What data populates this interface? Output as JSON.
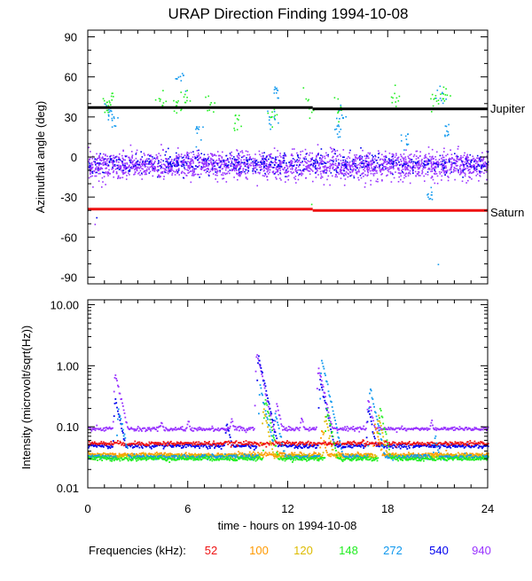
{
  "title": "URAP Direction Finding  1994-10-08",
  "legend": {
    "label": "Frequencies (kHz):",
    "items": [
      {
        "text": "52",
        "color": "#ee1111"
      },
      {
        "text": "100",
        "color": "#ff9900"
      },
      {
        "text": "120",
        "color": "#ddbb00"
      },
      {
        "text": "148",
        "color": "#22ee22"
      },
      {
        "text": "272",
        "color": "#1199ee"
      },
      {
        "text": "540",
        "color": "#0000ee"
      },
      {
        "text": "940",
        "color": "#9933ff"
      }
    ]
  },
  "chart_data": [
    {
      "type": "scatter",
      "name": "azimuth-panel",
      "title": "URAP Direction Finding  1994-10-08",
      "xlabel": "",
      "ylabel": "Azimuthal angle (deg)",
      "xlim": [
        0,
        24
      ],
      "ylim": [
        -95,
        95
      ],
      "yticks": [
        90,
        60,
        30,
        0,
        -30,
        -60,
        -90
      ],
      "ytick_labels": [
        "90",
        "60",
        "30",
        "0",
        "-30",
        "-60",
        "-90"
      ],
      "reference_lines": [
        {
          "name": "Jupiter",
          "color": "#000000",
          "segments": [
            {
              "x": [
                0,
                13.5
              ],
              "y": 37
            },
            {
              "x": [
                13.5,
                24
              ],
              "y": 36
            }
          ]
        },
        {
          "name": "Saturn",
          "color": "#ee1111",
          "segments": [
            {
              "x": [
                0,
                13.5
              ],
              "y": -39
            },
            {
              "x": [
                13.5,
                24
              ],
              "y": -40
            }
          ]
        }
      ],
      "series": [
        {
          "name": "940 kHz band",
          "color": "#9933ff",
          "center": -6,
          "spread": 5,
          "range": [
            -22,
            12
          ]
        },
        {
          "name": "540 kHz band",
          "color": "#0000ee",
          "center": -4,
          "spread": 4,
          "range": [
            -15,
            8
          ]
        },
        {
          "name": "148 kHz scatter",
          "color": "#22ee22",
          "clusters": [
            [
              1.0,
              40
            ],
            [
              1.4,
              42
            ],
            [
              4.4,
              42
            ],
            [
              5.3,
              38
            ],
            [
              5.8,
              45
            ],
            [
              7.3,
              40
            ],
            [
              8.9,
              25
            ],
            [
              11.0,
              32
            ],
            [
              13.2,
              38
            ],
            [
              15.0,
              37
            ],
            [
              18.5,
              45
            ],
            [
              20.8,
              40
            ],
            [
              21.3,
              48
            ]
          ]
        },
        {
          "name": "272 kHz scatter",
          "color": "#1199ee",
          "clusters": [
            [
              1.2,
              35
            ],
            [
              1.5,
              28
            ],
            [
              5.5,
              60
            ],
            [
              6.5,
              20
            ],
            [
              10.9,
              30
            ],
            [
              11.2,
              48
            ],
            [
              15.2,
              33
            ],
            [
              15.0,
              20
            ],
            [
              19.0,
              15
            ],
            [
              21.2,
              45
            ],
            [
              21.5,
              20
            ],
            [
              20.5,
              -30
            ]
          ]
        }
      ]
    },
    {
      "type": "scatter",
      "name": "intensity-panel",
      "xlabel": "time - hours on 1994-10-08",
      "ylabel": "Intensity (microvolt/sqrt(Hz))",
      "yscale": "log",
      "xlim": [
        0,
        24
      ],
      "ylim": [
        0.01,
        12
      ],
      "xticks": [
        0,
        6,
        12,
        18,
        24
      ],
      "xtick_labels": [
        "0",
        "6",
        "12",
        "18",
        "24"
      ],
      "yticks": [
        10,
        1,
        0.1,
        0.01
      ],
      "ytick_labels": [
        "10.00",
        "1.00",
        "0.10",
        "0.01"
      ],
      "series": [
        {
          "name": "52",
          "color": "#ee1111",
          "baseline": 0.055,
          "bursts": [
            [
              13.2,
              0.06
            ],
            [
              16.5,
              0.065
            ]
          ]
        },
        {
          "name": "100",
          "color": "#ff9900",
          "baseline": 0.036,
          "bursts": [
            [
              14.0,
              0.09
            ],
            [
              17.2,
              0.12
            ]
          ]
        },
        {
          "name": "120",
          "color": "#ddbb00",
          "baseline": 0.034,
          "bursts": [
            [
              10.5,
              0.2
            ],
            [
              14.2,
              0.15
            ],
            [
              17.4,
              0.16
            ]
          ]
        },
        {
          "name": "148",
          "color": "#22ee22",
          "baseline": 0.031,
          "bursts": [
            [
              10.6,
              0.3
            ],
            [
              14.3,
              0.2
            ],
            [
              17.5,
              0.2
            ]
          ]
        },
        {
          "name": "272",
          "color": "#1199ee",
          "baseline": 0.033,
          "bursts": [
            [
              1.8,
              0.2
            ],
            [
              10.3,
              0.5
            ],
            [
              11.2,
              0.18
            ],
            [
              14.0,
              1.3
            ],
            [
              16.9,
              0.45
            ],
            [
              20.8,
              0.07
            ]
          ]
        },
        {
          "name": "540",
          "color": "#0000ee",
          "baseline": 0.05,
          "bursts": [
            [
              1.6,
              0.3
            ],
            [
              8.3,
              0.12
            ],
            [
              10.2,
              1.5
            ],
            [
              13.9,
              0.6
            ],
            [
              16.8,
              0.2
            ]
          ]
        },
        {
          "name": "940",
          "color": "#9933ff",
          "baseline": 0.095,
          "bursts": [
            [
              1.6,
              0.8
            ],
            [
              4.4,
              0.13
            ],
            [
              6.0,
              0.13
            ],
            [
              8.6,
              0.14
            ],
            [
              10.1,
              1.7
            ],
            [
              11.3,
              0.25
            ],
            [
              12.8,
              0.15
            ],
            [
              13.8,
              1.0
            ],
            [
              16.8,
              0.3
            ],
            [
              20.6,
              0.13
            ]
          ]
        }
      ]
    }
  ],
  "labels": {
    "jupiter": "Jupiter",
    "saturn": "Saturn"
  }
}
